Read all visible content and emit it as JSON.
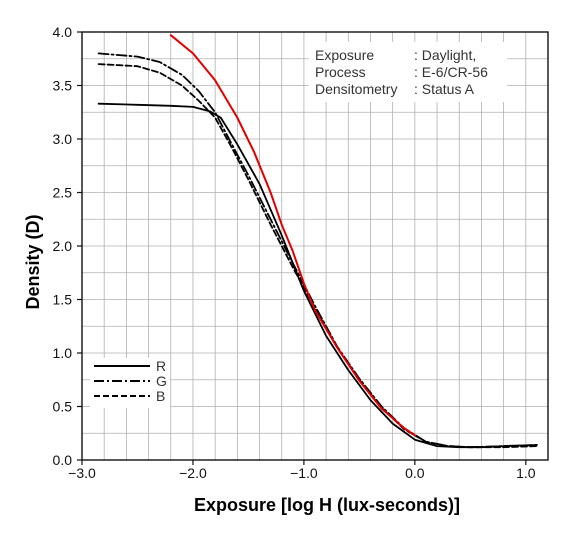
{
  "chart_data": {
    "type": "line",
    "xlabel": "Exposure [log H (lux-seconds)]",
    "ylabel": "Density (D)",
    "xlim": [
      -3.0,
      1.2
    ],
    "ylim": [
      0.0,
      4.0
    ],
    "x_ticks": [
      -3.0,
      -2.0,
      -1.0,
      0.0,
      1.0
    ],
    "x_tick_labels": [
      "−3.0",
      "−2.0",
      "−1.0",
      "0.0",
      "1.0"
    ],
    "y_ticks": [
      0.0,
      0.5,
      1.0,
      1.5,
      2.0,
      2.5,
      3.0,
      3.5,
      4.0
    ],
    "y_tick_labels": [
      "0.0",
      "0.5",
      "1.0",
      "1.5",
      "2.0",
      "2.5",
      "3.0",
      "3.5",
      "4.0"
    ],
    "grid": true,
    "legend_position": "bottom-left",
    "annotation": {
      "lines": [
        [
          "Exposure",
          ": Daylight,"
        ],
        [
          "Process",
          ": E-6/CR-56"
        ],
        [
          "Densitometry",
          ": Status A"
        ]
      ]
    },
    "series": [
      {
        "name": "R",
        "color": "#000000",
        "dash": "solid",
        "x": [
          -2.85,
          -2.5,
          -2.2,
          -2.0,
          -1.85,
          -1.75,
          -1.6,
          -1.4,
          -1.2,
          -1.0,
          -0.8,
          -0.6,
          -0.4,
          -0.2,
          0.0,
          0.2,
          0.4,
          0.6,
          0.8,
          1.1
        ],
        "y": [
          3.33,
          3.32,
          3.31,
          3.3,
          3.26,
          3.2,
          2.95,
          2.58,
          2.1,
          1.58,
          1.16,
          0.84,
          0.56,
          0.34,
          0.19,
          0.13,
          0.12,
          0.12,
          0.13,
          0.14
        ]
      },
      {
        "name": "G",
        "color": "#000000",
        "dash": "dashdot",
        "x": [
          -2.85,
          -2.5,
          -2.3,
          -2.1,
          -1.95,
          -1.8,
          -1.65,
          -1.5,
          -1.3,
          -1.1,
          -0.9,
          -0.7,
          -0.5,
          -0.3,
          -0.1,
          0.1,
          0.3,
          0.5,
          0.8,
          1.1
        ],
        "y": [
          3.8,
          3.77,
          3.72,
          3.6,
          3.45,
          3.25,
          2.95,
          2.66,
          2.25,
          1.84,
          1.44,
          1.06,
          0.76,
          0.5,
          0.3,
          0.17,
          0.13,
          0.12,
          0.13,
          0.14
        ]
      },
      {
        "name": "B",
        "color": "#000000",
        "dash": "dashed",
        "x": [
          -2.85,
          -2.5,
          -2.3,
          -2.1,
          -1.95,
          -1.8,
          -1.65,
          -1.5,
          -1.3,
          -1.1,
          -0.9,
          -0.7,
          -0.5,
          -0.3,
          -0.1,
          0.1,
          0.3,
          0.5,
          0.8,
          1.1
        ],
        "y": [
          3.7,
          3.68,
          3.62,
          3.5,
          3.36,
          3.2,
          2.92,
          2.62,
          2.2,
          1.8,
          1.42,
          1.05,
          0.75,
          0.49,
          0.29,
          0.17,
          0.13,
          0.12,
          0.12,
          0.13
        ]
      },
      {
        "color": "#e00000",
        "dash": "solid",
        "x": [
          -2.2,
          -2.0,
          -1.8,
          -1.6,
          -1.45,
          -1.3,
          -1.2,
          -1.1,
          -1.0,
          -0.9,
          -0.7,
          -0.5,
          -0.3,
          -0.1,
          0.0
        ],
        "y": [
          3.97,
          3.8,
          3.55,
          3.2,
          2.88,
          2.5,
          2.2,
          1.95,
          1.65,
          1.4,
          1.05,
          0.74,
          0.48,
          0.3,
          0.23
        ]
      }
    ],
    "legend": [
      {
        "label": "R",
        "dash": "solid"
      },
      {
        "label": "G",
        "dash": "dashdot"
      },
      {
        "label": "B",
        "dash": "dashed"
      }
    ]
  }
}
